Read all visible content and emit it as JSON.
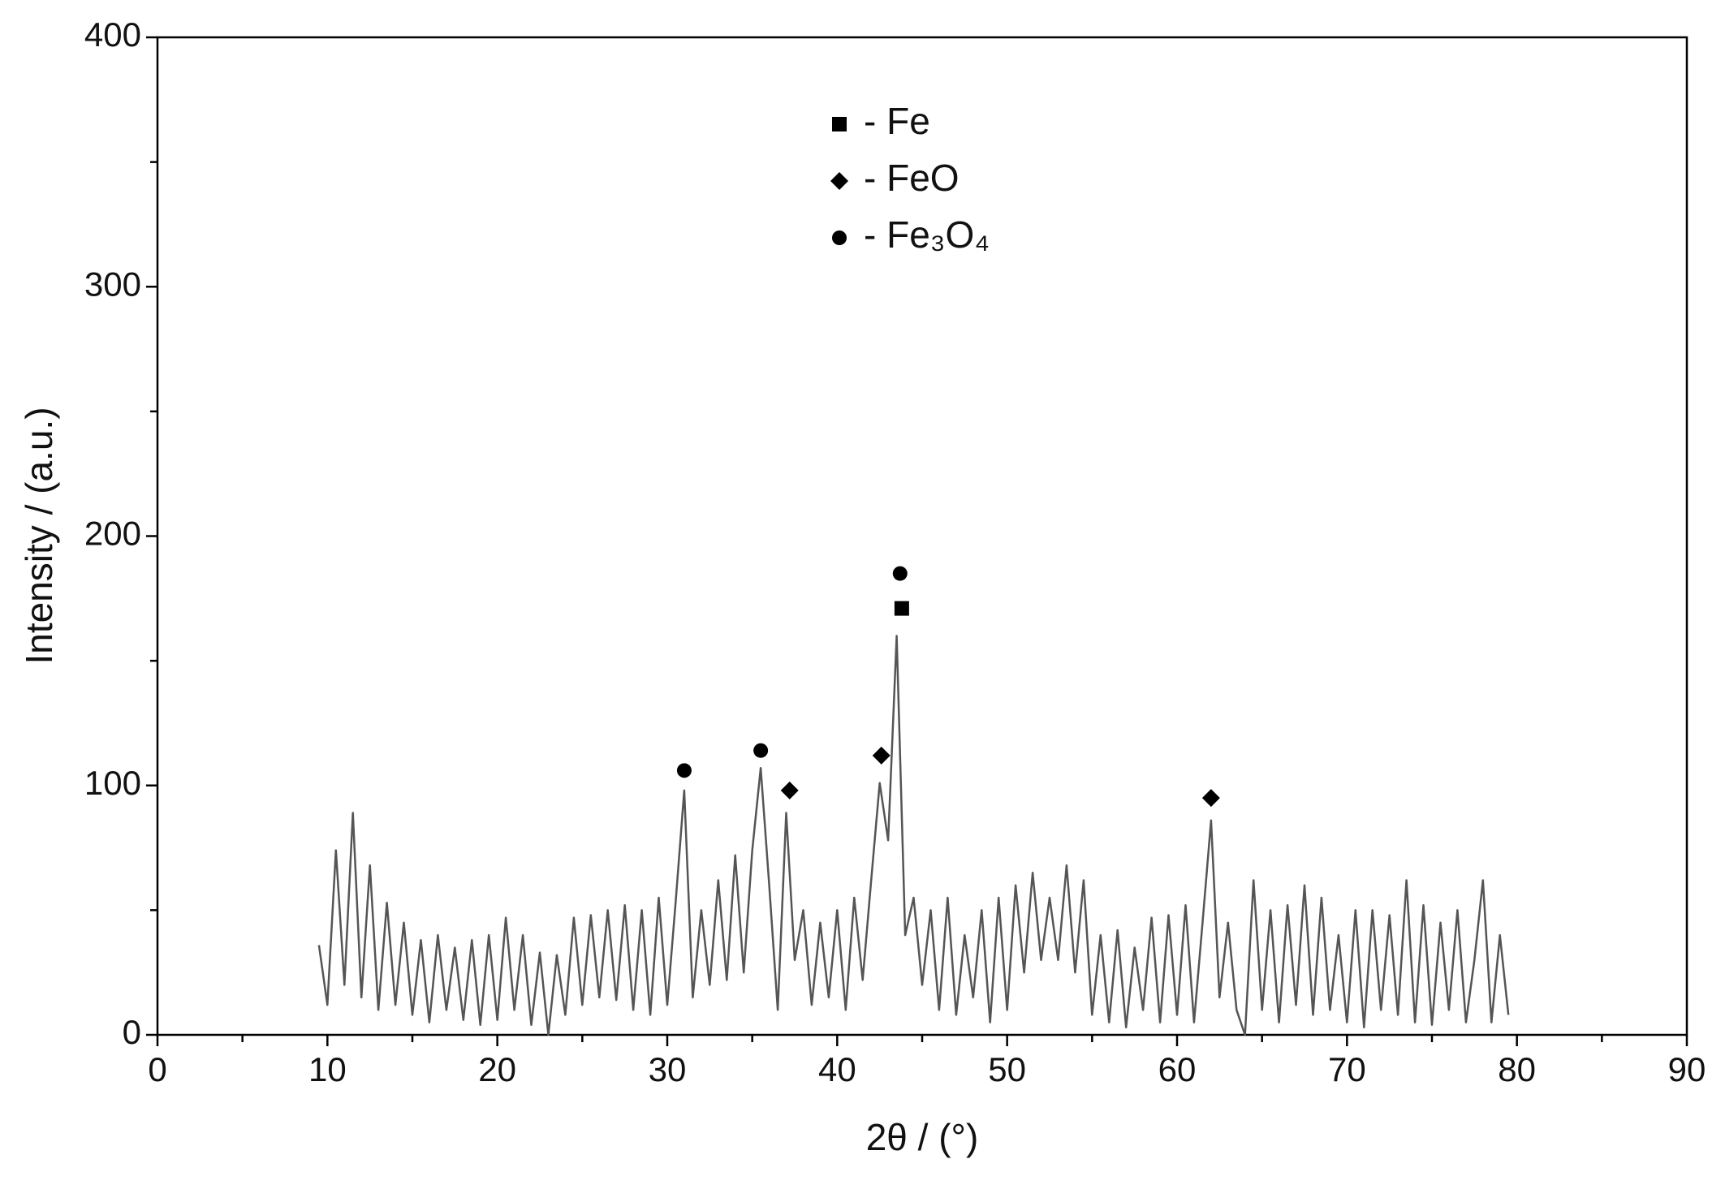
{
  "chart_data": {
    "type": "line",
    "xlabel": "2θ / (°)",
    "ylabel": "Intensity / (a.u.)",
    "xlim": [
      0,
      90
    ],
    "ylim": [
      0,
      400
    ],
    "xticks": [
      0,
      10,
      20,
      30,
      40,
      50,
      60,
      70,
      80,
      90
    ],
    "xminorticks": [
      5,
      15,
      25,
      35,
      45,
      55,
      65,
      75,
      85
    ],
    "yticks": [
      0,
      100,
      200,
      300,
      400
    ],
    "yminorticks": [
      50,
      150,
      250,
      350
    ],
    "color": "#555555",
    "marker_color": "#000000",
    "x": [
      9.5,
      10.0,
      10.5,
      11.0,
      11.5,
      12.0,
      12.5,
      13.0,
      13.5,
      14.0,
      14.5,
      15.0,
      15.5,
      16.0,
      16.5,
      17.0,
      17.5,
      18.0,
      18.5,
      19.0,
      19.5,
      20.0,
      20.5,
      21.0,
      21.5,
      22.0,
      22.5,
      23.0,
      23.5,
      24.0,
      24.5,
      25.0,
      25.5,
      26.0,
      26.5,
      27.0,
      27.5,
      28.0,
      28.5,
      29.0,
      29.5,
      30.0,
      30.5,
      31.0,
      31.5,
      32.0,
      32.5,
      33.0,
      33.5,
      34.0,
      34.5,
      35.0,
      35.5,
      36.0,
      36.5,
      37.0,
      37.5,
      38.0,
      38.5,
      39.0,
      39.5,
      40.0,
      40.5,
      41.0,
      41.5,
      42.0,
      42.5,
      43.0,
      43.5,
      44.0,
      44.5,
      45.0,
      45.5,
      46.0,
      46.5,
      47.0,
      47.5,
      48.0,
      48.5,
      49.0,
      49.5,
      50.0,
      50.5,
      51.0,
      51.5,
      52.0,
      52.5,
      53.0,
      53.5,
      54.0,
      54.5,
      55.0,
      55.5,
      56.0,
      56.5,
      57.0,
      57.5,
      58.0,
      58.5,
      59.0,
      59.5,
      60.0,
      60.5,
      61.0,
      61.5,
      62.0,
      62.5,
      63.0,
      63.5,
      64.0,
      64.5,
      65.0,
      65.5,
      66.0,
      66.5,
      67.0,
      67.5,
      68.0,
      68.5,
      69.0,
      69.5,
      70.0,
      70.5,
      71.0,
      71.5,
      72.0,
      72.5,
      73.0,
      73.5,
      74.0,
      74.5,
      75.0,
      75.5,
      76.0,
      76.5,
      77.0,
      77.5,
      78.0,
      78.5,
      79.0,
      79.5
    ],
    "values": [
      36,
      12,
      74,
      20,
      89,
      15,
      68,
      10,
      53,
      12,
      45,
      8,
      38,
      5,
      40,
      10,
      35,
      6,
      38,
      4,
      40,
      6,
      47,
      10,
      40,
      4,
      33,
      0,
      32,
      8,
      47,
      12,
      48,
      15,
      50,
      14,
      52,
      10,
      50,
      8,
      55,
      12,
      54,
      98,
      15,
      50,
      20,
      62,
      22,
      72,
      25,
      74,
      107,
      60,
      10,
      89,
      30,
      50,
      12,
      45,
      15,
      50,
      10,
      55,
      22,
      62,
      101,
      78,
      160,
      40,
      55,
      20,
      50,
      10,
      55,
      8,
      40,
      15,
      50,
      5,
      55,
      10,
      60,
      25,
      65,
      30,
      55,
      30,
      68,
      25,
      62,
      8,
      40,
      5,
      42,
      3,
      35,
      10,
      47,
      5,
      48,
      8,
      52,
      5,
      45,
      86,
      15,
      45,
      10,
      0,
      62,
      10,
      50,
      5,
      52,
      12,
      60,
      8,
      55,
      10,
      40,
      5,
      50,
      3,
      50,
      10,
      48,
      8,
      62,
      5,
      52,
      4,
      45,
      10,
      50,
      5,
      30,
      62,
      5,
      40,
      8
    ],
    "legend": [
      {
        "label": "- Fe",
        "marker": "square"
      },
      {
        "label": "- FeO",
        "marker": "diamond"
      },
      {
        "label": "- Fe₃O₄",
        "marker": "circle"
      }
    ],
    "peak_markers": [
      {
        "x": 31.0,
        "y": 106,
        "marker": "circle"
      },
      {
        "x": 35.5,
        "y": 114,
        "marker": "circle"
      },
      {
        "x": 37.2,
        "y": 98,
        "marker": "diamond"
      },
      {
        "x": 42.6,
        "y": 112,
        "marker": "diamond"
      },
      {
        "x": 43.8,
        "y": 171,
        "marker": "square"
      },
      {
        "x": 43.7,
        "y": 185,
        "marker": "circle"
      },
      {
        "x": 62.0,
        "y": 95,
        "marker": "diamond"
      }
    ]
  }
}
